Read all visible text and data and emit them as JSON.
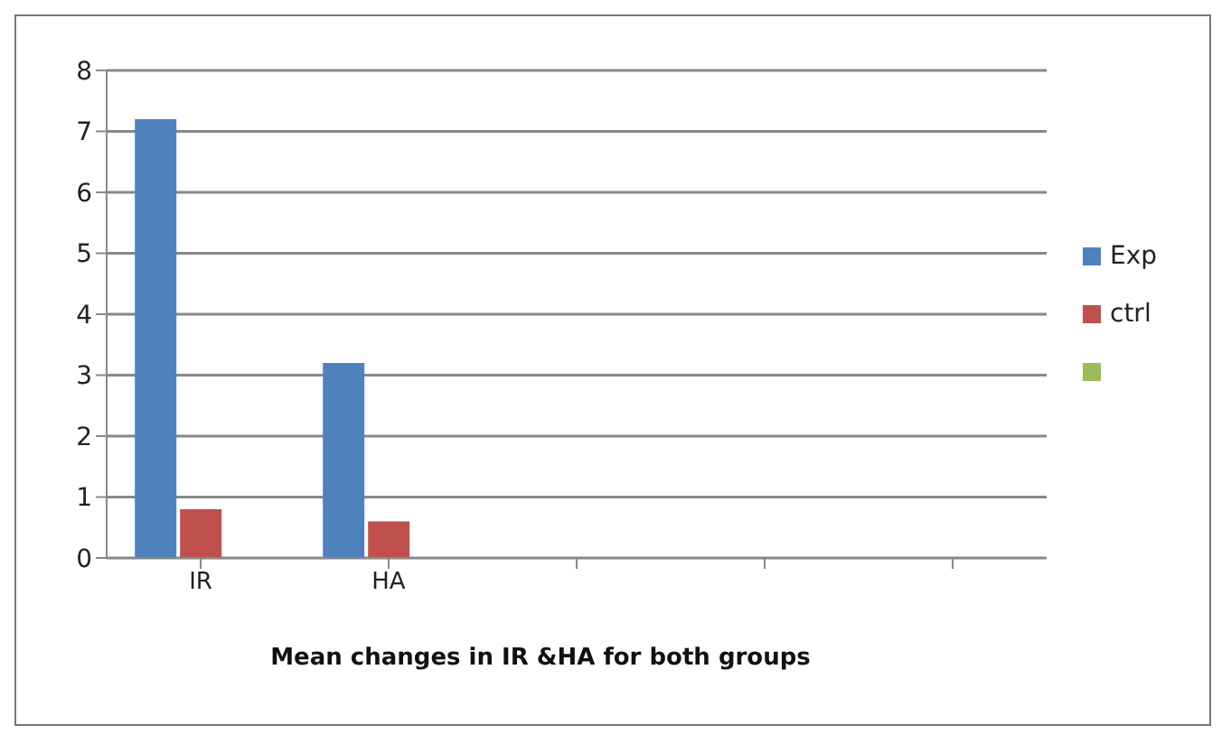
{
  "chart_data": {
    "type": "bar",
    "xlabel": "Mean changes in IR &HA for both groups",
    "categories": [
      "IR",
      "HA",
      null,
      null,
      null
    ],
    "series": [
      {
        "name": "Exp",
        "color": "#4f81bd",
        "values": [
          7.2,
          3.2,
          null,
          null,
          null
        ]
      },
      {
        "name": "ctrl",
        "color": "#c0504d",
        "values": [
          0.8,
          0.6,
          null,
          null,
          null
        ]
      },
      {
        "color": "#9bbb59",
        "values": [
          null,
          null,
          null,
          null,
          null
        ]
      }
    ],
    "ylim": [
      0,
      8
    ],
    "yticks": [
      0,
      1,
      2,
      3,
      4,
      5,
      6,
      7,
      8
    ],
    "grid": "y",
    "legend": "right"
  }
}
